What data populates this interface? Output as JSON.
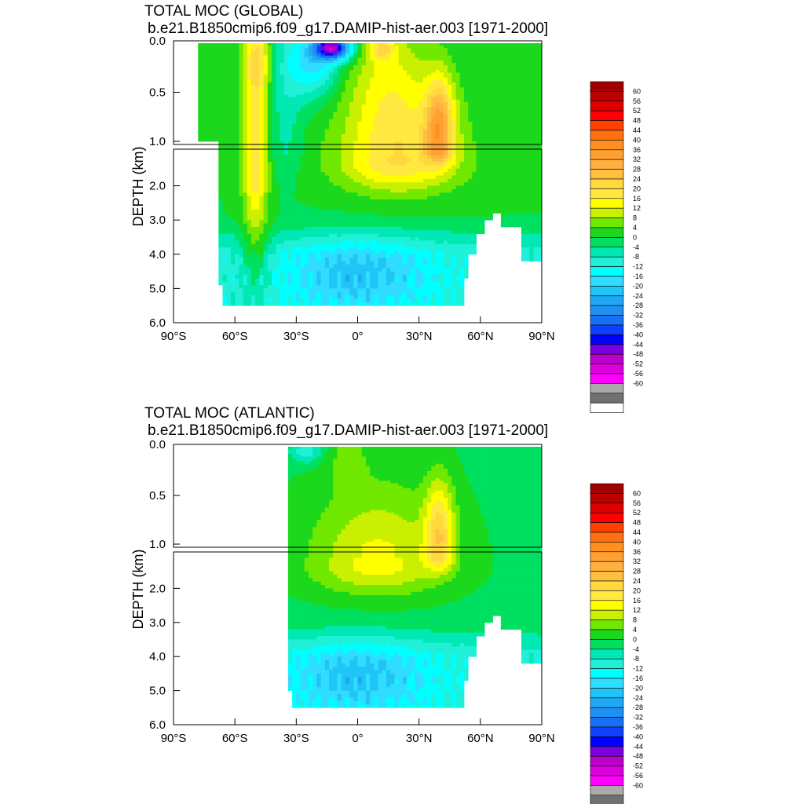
{
  "palette_colors": [
    "#ffffff",
    "#707070",
    "#aaaaaa",
    "#ff00ff",
    "#dd00dd",
    "#bb00cc",
    "#7a00dd",
    "#0000ff",
    "#1040ff",
    "#1870f5",
    "#2090f0",
    "#20a8f5",
    "#20c4f5",
    "#30dcff",
    "#00ffff",
    "#20f0d8",
    "#00e8b4",
    "#00e060",
    "#1cd81c",
    "#70e800",
    "#c8f000",
    "#ffff00",
    "#ffe840",
    "#ffd840",
    "#ffc040",
    "#ffb040",
    "#ffa030",
    "#ff8f20",
    "#ff7010",
    "#ff4000",
    "#ff0000",
    "#dd0000",
    "#bb0000",
    "#a00000"
  ],
  "chart_data": [
    {
      "type": "heatmap",
      "panel": "global",
      "title": "TOTAL MOC (GLOBAL)",
      "subtitle": "b.e21.B1850cmip6.f09_g17.DAMIP-hist-aer.003 [1971-2000]",
      "ylabel": "DEPTH (km)",
      "x_ticks": [
        "90°S",
        "60°S",
        "30°S",
        "0°",
        "30°N",
        "60°N",
        "90°N"
      ],
      "y_ticks": [
        "0.0",
        "0.5",
        "1.0",
        "2.0",
        "3.0",
        "4.0",
        "5.0",
        "6.0"
      ],
      "xlim": [
        -90,
        90
      ],
      "ylim_km": [
        6.0,
        0.0
      ],
      "y_axis_break_km": 1.0,
      "colorbar": {
        "levels": [
          -60,
          -56,
          -52,
          -48,
          -44,
          -40,
          -36,
          -32,
          -28,
          -24,
          -20,
          -16,
          -12,
          -8,
          -4,
          0,
          4,
          8,
          12,
          16,
          20,
          24,
          28,
          32,
          36,
          40,
          44,
          48,
          52,
          56,
          60
        ],
        "labels": [
          "60",
          "56",
          "52",
          "48",
          "44",
          "40",
          "36",
          "32",
          "28",
          "24",
          "20",
          "16",
          "12",
          "8",
          "4",
          "0",
          "-4",
          "-8",
          "-12",
          "-16",
          "-20",
          "-24",
          "-28",
          "-32",
          "-36",
          "-40",
          "-44",
          "-48",
          "-52",
          "-56",
          "-60"
        ]
      },
      "features": [
        {
          "name": "southern_ocean_positive_cell",
          "lat": -50,
          "depth_range_km": [
            0.0,
            3.5
          ],
          "max_sv": 28
        },
        {
          "name": "deacon_negative_cell",
          "lat": -15,
          "depth_range_km": [
            0.0,
            0.2
          ],
          "min_sv": -44
        },
        {
          "name": "atlantic_overturning_cell",
          "lat": 40,
          "depth_range_km": [
            0.3,
            1.8
          ],
          "max_sv": 32
        },
        {
          "name": "abyssal_negative_cell",
          "lat": -10,
          "depth_range_km": [
            3.8,
            5.5
          ],
          "min_sv": -4
        }
      ]
    },
    {
      "type": "heatmap",
      "panel": "atlantic",
      "title": "TOTAL MOC (ATLANTIC)",
      "subtitle": "b.e21.B1850cmip6.f09_g17.DAMIP-hist-aer.003 [1971-2000]",
      "ylabel": "DEPTH (km)",
      "x_ticks": [
        "90°S",
        "60°S",
        "30°S",
        "0°",
        "30°N",
        "60°N",
        "90°N"
      ],
      "y_ticks": [
        "0.0",
        "0.5",
        "1.0",
        "2.0",
        "3.0",
        "4.0",
        "5.0",
        "6.0"
      ],
      "xlim": [
        -90,
        90
      ],
      "ylim_km": [
        6.0,
        0.0
      ],
      "y_axis_break_km": 1.0,
      "colorbar": {
        "levels": [
          -60,
          -56,
          -52,
          -48,
          -44,
          -40,
          -36,
          -32,
          -28,
          -24,
          -20,
          -16,
          -12,
          -8,
          -4,
          0,
          4,
          8,
          12,
          16,
          20,
          24,
          28,
          32,
          36,
          40,
          44,
          48,
          52,
          56,
          60
        ],
        "labels": [
          "60",
          "56",
          "52",
          "48",
          "44",
          "40",
          "36",
          "32",
          "28",
          "24",
          "20",
          "16",
          "12",
          "8",
          "4",
          "0",
          "-4",
          "-8",
          "-12",
          "-16",
          "-20",
          "-24",
          "-28",
          "-32",
          "-36",
          "-40",
          "-44",
          "-48",
          "-52",
          "-56",
          "-60"
        ]
      },
      "features": [
        {
          "name": "atlantic_overturning_cell",
          "lat": 40,
          "depth_range_km": [
            0.3,
            1.8
          ],
          "max_sv": 32
        },
        {
          "name": "surface_negative_cell",
          "lat": -25,
          "depth_range_km": [
            0.0,
            0.15
          ],
          "min_sv": -4
        },
        {
          "name": "abyssal_negative_cell",
          "lat": 0,
          "depth_range_km": [
            3.5,
            5.5
          ],
          "min_sv": -4
        }
      ]
    }
  ]
}
